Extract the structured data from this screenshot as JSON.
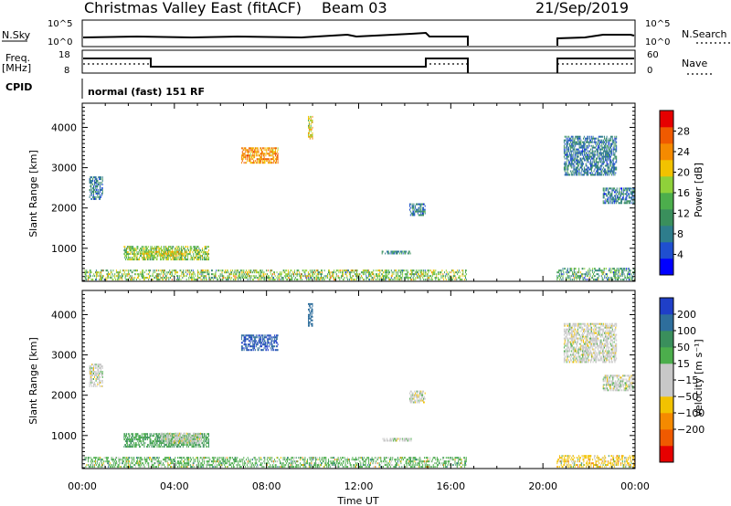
{
  "header": {
    "site": "Christmas Valley East (fitACF)",
    "beam": "Beam 03",
    "date": "21/Sep/2019"
  },
  "top_panels": {
    "nsky_label": "N.Sky",
    "nsky_ticks": [
      "10^5",
      "10^0"
    ],
    "nsearch_label": "N.Search",
    "freq_label": "Freq.",
    "freq_unit": "[MHz]",
    "freq_ticks": [
      "18",
      "8"
    ],
    "nave_ticks": [
      "60",
      "0"
    ],
    "nave_label": "Nave",
    "cpid_label": "CPID",
    "cpid_text": "normal (fast) 151 RF"
  },
  "axes": {
    "ylabel": "Slant Range [km]",
    "yticks": [
      "1000",
      "2000",
      "3000",
      "4000"
    ],
    "xlabel": "Time UT",
    "xticks": [
      "00:00",
      "04:00",
      "08:00",
      "12:00",
      "16:00",
      "20:00",
      "00:00"
    ]
  },
  "colors": {
    "power_scale": [
      "#0000ff",
      "#1f4fd0",
      "#2e7d8c",
      "#3a8f5c",
      "#4cae4c",
      "#8fd13a",
      "#f2c200",
      "#f58a00",
      "#f05a00",
      "#e60000"
    ],
    "velocity_scale": [
      "#e60000",
      "#f05a00",
      "#f58a00",
      "#f2c200",
      "#c8c8c8",
      "#c8c8c8",
      "#4cae4c",
      "#3a8f5c",
      "#2e6e9c",
      "#1f3fc8"
    ]
  },
  "chart_data": [
    {
      "type": "heatmap",
      "title": "",
      "xlabel": "Time UT",
      "ylabel": "Slant Range [km]",
      "xlim": [
        0,
        24
      ],
      "ylim": [
        180,
        4600
      ],
      "colorbar": {
        "label": "Power [dB]",
        "ticks": [
          4,
          8,
          12,
          16,
          20,
          24,
          28
        ],
        "range": [
          0,
          32
        ]
      },
      "features": [
        {
          "t": [
            0.3,
            0.9
          ],
          "r": [
            2200,
            2800
          ],
          "value": 8
        },
        {
          "t": [
            1.8,
            5.5
          ],
          "r": [
            700,
            1050
          ],
          "value": 16
        },
        {
          "t": [
            2.5,
            4.5
          ],
          "r": [
            800,
            950
          ],
          "value": 20
        },
        {
          "t": [
            0.1,
            16.7
          ],
          "r": [
            200,
            450
          ],
          "value": 16
        },
        {
          "t": [
            13.0,
            14.3
          ],
          "r": [
            850,
            950
          ],
          "value": 10
        },
        {
          "t": [
            14.2,
            14.9
          ],
          "r": [
            1800,
            2100
          ],
          "value": 8
        },
        {
          "t": [
            6.9,
            8.5
          ],
          "r": [
            3100,
            3500
          ],
          "value": 24
        },
        {
          "t": [
            9.8,
            10.0
          ],
          "r": [
            3700,
            4300
          ],
          "value": 20
        },
        {
          "t": [
            20.6,
            24.0
          ],
          "r": [
            200,
            500
          ],
          "value": 12
        },
        {
          "t": [
            20.9,
            23.2
          ],
          "r": [
            2800,
            3800
          ],
          "value": 8
        },
        {
          "t": [
            22.6,
            24.0
          ],
          "r": [
            2100,
            2500
          ],
          "value": 8
        }
      ]
    },
    {
      "type": "heatmap",
      "title": "",
      "xlabel": "Time UT",
      "ylabel": "Slant Range [km]",
      "xlim": [
        0,
        24
      ],
      "ylim": [
        180,
        4600
      ],
      "colorbar": {
        "label": "Velocity [m s⁻¹]",
        "ticks": [
          "200",
          "100",
          "50",
          "15",
          "−15",
          "−50",
          "−100",
          "−200"
        ]
      },
      "features": [
        {
          "t": [
            0.3,
            0.9
          ],
          "r": [
            2200,
            2800
          ],
          "value": 0
        },
        {
          "t": [
            1.8,
            5.5
          ],
          "r": [
            700,
            1050
          ],
          "value": 50
        },
        {
          "t": [
            3.4,
            5.2
          ],
          "r": [
            800,
            1050
          ],
          "value": 0
        },
        {
          "t": [
            0.1,
            16.7
          ],
          "r": [
            200,
            450
          ],
          "value": 30
        },
        {
          "t": [
            13.0,
            14.3
          ],
          "r": [
            850,
            950
          ],
          "value": 0
        },
        {
          "t": [
            14.2,
            14.9
          ],
          "r": [
            1800,
            2100
          ],
          "value": 0
        },
        {
          "t": [
            6.9,
            8.5
          ],
          "r": [
            3100,
            3500
          ],
          "value": 200
        },
        {
          "t": [
            9.8,
            10.0
          ],
          "r": [
            3700,
            4300
          ],
          "value": 150
        },
        {
          "t": [
            20.6,
            24.0
          ],
          "r": [
            200,
            500
          ],
          "value": -30
        },
        {
          "t": [
            20.9,
            23.2
          ],
          "r": [
            2800,
            3800
          ],
          "value": 0
        },
        {
          "t": [
            22.6,
            24.0
          ],
          "r": [
            2100,
            2500
          ],
          "value": 0
        }
      ]
    }
  ]
}
